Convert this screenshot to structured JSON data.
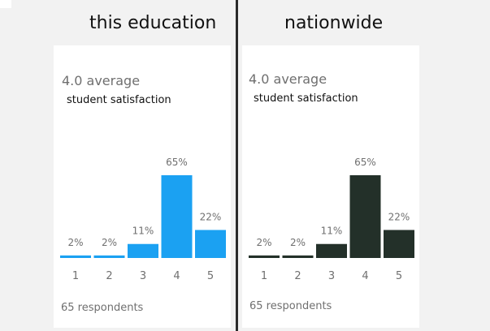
{
  "left": {
    "heading": "this education",
    "average": "4.0 average",
    "subtitle": "student satisfaction",
    "respondents": "65 respondents",
    "color": "#1ba1f2"
  },
  "right": {
    "heading": "nationwide",
    "average": "4.0 average",
    "subtitle": "student satisfaction",
    "respondents": "65 respondents",
    "color": "#233029"
  },
  "chart_data": [
    {
      "type": "bar",
      "categories": [
        "1",
        "2",
        "3",
        "4",
        "5"
      ],
      "values": [
        2,
        2,
        11,
        65,
        22
      ],
      "value_labels": [
        "2%",
        "2%",
        "11%",
        "65%",
        "22%"
      ],
      "ylim": [
        0,
        65
      ],
      "grid": false
    },
    {
      "type": "bar",
      "categories": [
        "1",
        "2",
        "3",
        "4",
        "5"
      ],
      "values": [
        2,
        2,
        11,
        65,
        22
      ],
      "value_labels": [
        "2%",
        "2%",
        "11%",
        "65%",
        "22%"
      ],
      "ylim": [
        0,
        65
      ],
      "grid": false
    }
  ]
}
